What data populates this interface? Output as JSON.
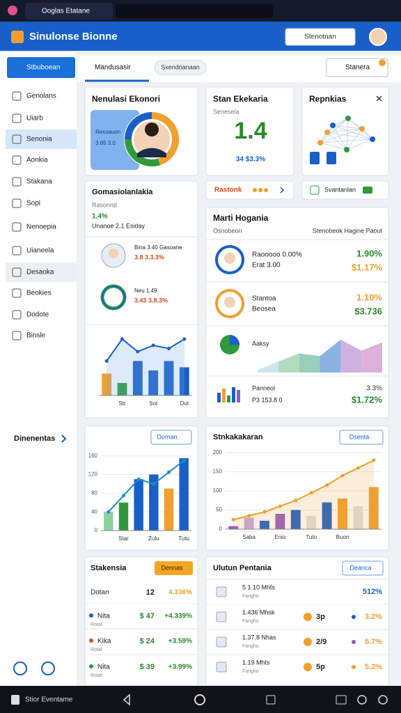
{
  "browser": {
    "tab": "Ooglas Etatane"
  },
  "header": {
    "title": "Sinulonse Bionne",
    "search": "Stenotnan"
  },
  "sidebar": {
    "primary": "Stbuboean",
    "items": [
      "Genolans",
      "Uiarb",
      "Senonia",
      "Aonkia",
      "Stakana",
      "Sopi",
      "Nenoepia",
      "Uianeela",
      "Desaoka",
      "Beokies",
      "Dodote",
      "Binsle"
    ],
    "section": "Dinenentas"
  },
  "toolbar": {
    "tab": "Mandusasir",
    "pill": "Sxendoanaan",
    "search": "Stanera"
  },
  "cards": {
    "profile": {
      "title": "Nenulasi Ekonori",
      "label": "Rexsauon",
      "value": "3.65 3.0",
      "donut": [
        45,
        30,
        25
      ],
      "colors": [
        "#f0a030",
        "#2e9a3c",
        "#1a5fc8"
      ]
    },
    "stat": {
      "title": "Stan Ekekaria",
      "subtitle": "Senesela",
      "value": "1.4",
      "delta": "34 $3.3%"
    },
    "network": {
      "title": "Repnkias"
    },
    "rating": {
      "label": "Rastonk"
    },
    "status": {
      "label": "Svantanlan"
    },
    "summary": {
      "title": "Gomasiolanlakia",
      "subtitle": "Rasonnd",
      "rate": "1.4%",
      "note": "Unanoe 2.1 Esiday",
      "people": [
        {
          "name": "Bina 3.40 Gasoane",
          "value": "3.8 3.3.3%"
        },
        {
          "name": "Neu 1.49",
          "value": "3.43 3.8.3%"
        }
      ],
      "chart": {
        "categories": [
          null,
          "Str",
          null,
          "Sot",
          null,
          "Dut"
        ],
        "bars": [
          35,
          20,
          55,
          40,
          55,
          45
        ],
        "line": [
          55,
          90,
          70,
          80,
          75,
          90
        ],
        "colors": [
          "#f0a030",
          "#2e9a3c",
          "#1a5fc8",
          "#1a5fc8",
          "#1a5fc8",
          "#1a5fc8"
        ],
        "ylim": [
          0,
          100
        ]
      }
    },
    "market": {
      "title": "Marti Hogania",
      "subtitle": "Osnobeon",
      "aside": "Stenobeok Hagine Paout",
      "rows": [
        {
          "a": "Raooooo 0.00%",
          "b": "Erat 3.00",
          "c": "1.90%",
          "d": "$1.17%"
        },
        {
          "a": "Stantoa",
          "b": "Beosea",
          "c": "1.10%",
          "d": "$3.736"
        }
      ],
      "area": {
        "label": "Aaksy",
        "values": [
          5,
          20,
          35,
          30,
          60,
          40,
          55
        ],
        "colors": [
          "#c9e3f0",
          "#a9d8b8",
          "#8fc9b0",
          "#7ea8e0",
          "#c9a8dc",
          "#d9a8d8"
        ]
      },
      "mini": {
        "a": "Panneol",
        "b": "P3 153.8 0",
        "c": "3.3%",
        "d": "$1.72%",
        "values": [
          14,
          20,
          10,
          22,
          18
        ],
        "colors": [
          "#1a5fc8",
          "#f0a030",
          "#2e9a3c",
          "#1a5fc8",
          "#8e5cc8"
        ]
      }
    },
    "bars": {
      "dropdown": "Doman",
      "categories": [
        null,
        "Star",
        null,
        "Zulu",
        null,
        "Tutu"
      ],
      "values": [
        40,
        60,
        110,
        120,
        90,
        155
      ],
      "line": [
        40,
        75,
        110,
        100,
        125,
        150
      ],
      "colors": [
        "#8fd19e",
        "#2e9a3c",
        "#1a5fc8",
        "#1a5fc8",
        "#f0a030",
        "#1a5fc8"
      ],
      "ylim": [
        0,
        170
      ],
      "yticks": [
        0,
        40,
        80,
        120,
        160
      ]
    },
    "trend": {
      "title": "Stnkakakaran",
      "dropdown": "Dsenta",
      "categories": [
        null,
        "Saba",
        null,
        "Enio",
        null,
        "Tuto",
        null,
        "Buon",
        null,
        null
      ],
      "values": [
        8,
        30,
        22,
        40,
        50,
        35,
        70,
        80,
        60,
        110
      ],
      "line": [
        25,
        35,
        45,
        60,
        75,
        95,
        115,
        140,
        160,
        180
      ],
      "colors": [
        "#8e5cc8",
        "#c0a8e8",
        "#1a5fc8",
        "#8e5cc8",
        "#1a5fc8",
        "#e0e0e0",
        "#1a5fc8",
        "#f0a030",
        "#e0e0e0",
        "#f0a030"
      ],
      "ylim": [
        0,
        200
      ],
      "yticks": [
        0,
        50,
        100,
        150,
        200
      ]
    },
    "ledger": {
      "title": "Stakensia",
      "dropdown": "Dennas",
      "rows": [
        {
          "name": "Dotan",
          "amount": "12",
          "pct": "4.336%"
        },
        {
          "name": "Nita",
          "sub": "Rotal",
          "amount": "$ 47",
          "pct": "+4.339%"
        },
        {
          "name": "Kika",
          "sub": "Rotal",
          "amount": "$ 24",
          "pct": "+3.59%"
        },
        {
          "name": "Nita",
          "sub": "Rotal",
          "amount": "$ 39",
          "pct": "+3.99%"
        }
      ]
    },
    "updates": {
      "title": "Ulutun Pentania",
      "dropdown": "Deanca",
      "rows": [
        {
          "a": "5 1.10 Mhts",
          "b": "Fangho",
          "pct": "512%"
        },
        {
          "a": "1.436 Mhsk",
          "b": "Fangho",
          "tag": "3p",
          "pct": "3.2%"
        },
        {
          "a": "1.37.8 Nhas",
          "b": "Fangho",
          "tag": "2/9",
          "pct": "5.7%"
        },
        {
          "a": "1.19 Mhts",
          "b": "Fangho",
          "tag": "5p",
          "pct": "5.2%"
        }
      ]
    }
  },
  "nav": {
    "label": "Stior Eventame"
  }
}
